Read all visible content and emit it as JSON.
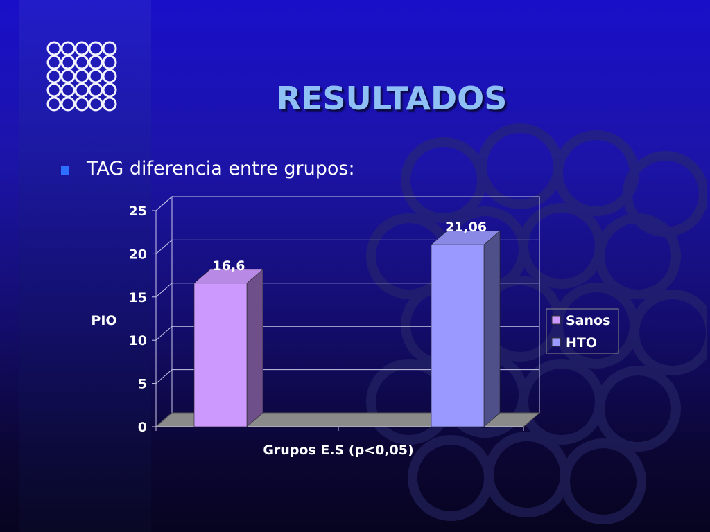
{
  "slide": {
    "title": "RESULTADOS",
    "bullet": "TAG diferencia entre grupos:"
  },
  "colors": {
    "title": "#8fc0f5",
    "bullet": "#2f6fff",
    "sanos": "#cc99ff",
    "hto": "#9999ff",
    "floor": "#8a8a8a"
  },
  "chart_data": {
    "type": "bar",
    "title": "",
    "xlabel": "Grupos  E.S (p<0,05)",
    "ylabel": "PIO",
    "ylim": [
      0,
      25
    ],
    "yticks": [
      0,
      5,
      10,
      15,
      20,
      25
    ],
    "grid": true,
    "legend_position": "right",
    "series": [
      {
        "name": "Sanos",
        "value": 16.6,
        "label": "16,6"
      },
      {
        "name": "HTO",
        "value": 21.06,
        "label": "21,06"
      }
    ]
  }
}
